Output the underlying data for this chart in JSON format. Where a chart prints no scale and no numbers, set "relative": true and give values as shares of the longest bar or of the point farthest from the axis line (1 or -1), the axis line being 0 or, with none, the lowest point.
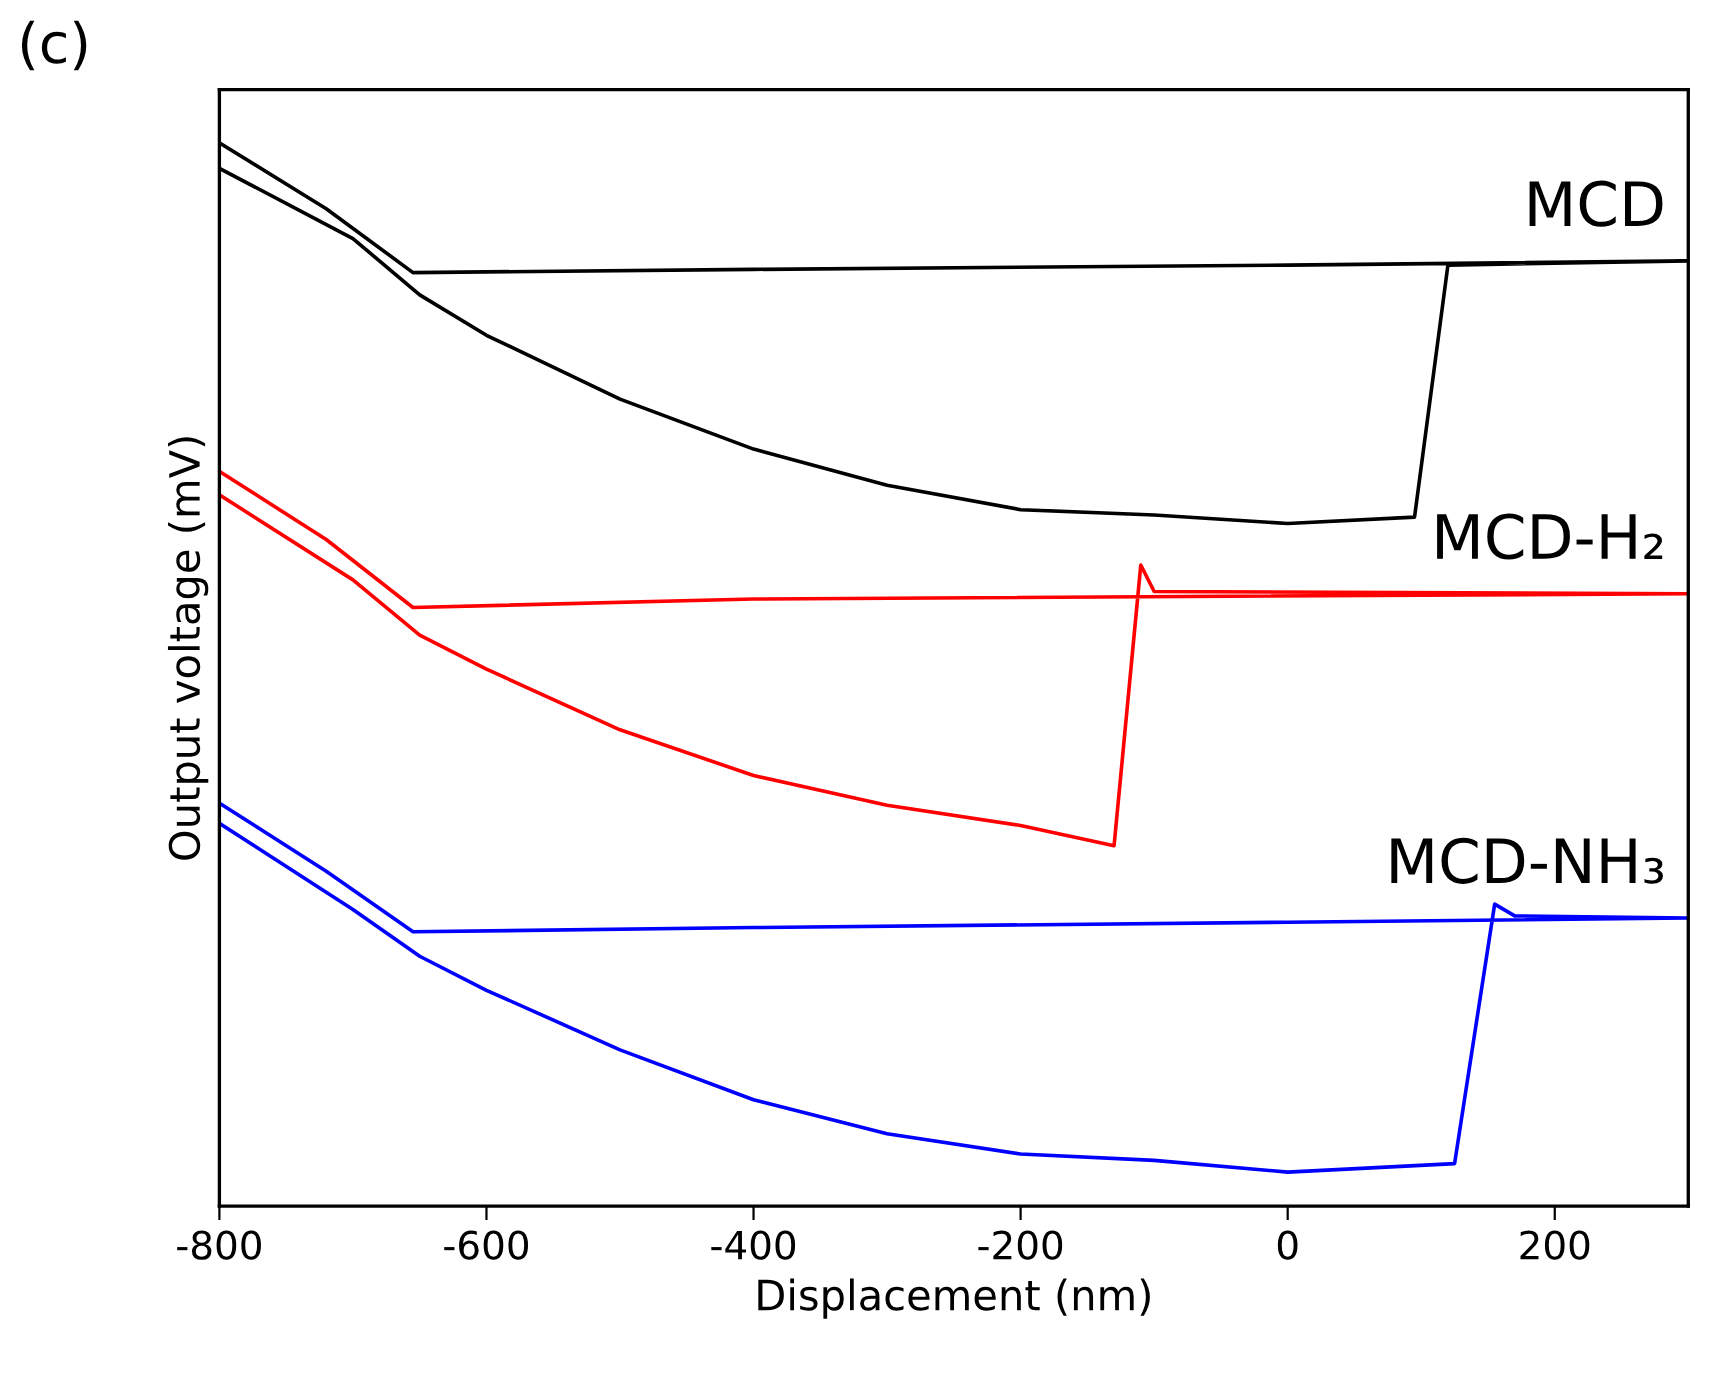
{
  "chart_data": {
    "type": "line",
    "relative": true,
    "xlabel": "Displacement (nm)",
    "ylabel": "Output voltage (mV)",
    "xlim": [
      -800,
      300
    ],
    "xticks": [
      -800,
      -600,
      -400,
      -200,
      0,
      200
    ],
    "annotations": [
      "(c)"
    ],
    "grid": false,
    "legend": false,
    "marker": "none",
    "line_style": "solid",
    "series": [
      {
        "name": "MCD",
        "color": "#000000",
        "x": [
          -800,
          -700,
          -650,
          -600,
          -500,
          -400,
          -300,
          -200,
          -100,
          0,
          95,
          120,
          300,
          0,
          -400,
          -655,
          -720,
          -800
        ],
        "values": [
          0.976,
          0.91,
          0.857,
          0.819,
          0.759,
          0.712,
          0.678,
          0.655,
          0.65,
          0.642,
          0.648,
          0.885,
          0.889,
          0.885,
          0.881,
          0.878,
          0.938,
          1.0
        ]
      },
      {
        "name": "MCD-H₂",
        "color": "#ff0000",
        "x": [
          -800,
          -700,
          -650,
          -600,
          -500,
          -400,
          -300,
          -200,
          -130,
          -110,
          -100,
          300,
          -400,
          -655,
          -720,
          -800
        ],
        "values": [
          0.669,
          0.589,
          0.537,
          0.505,
          0.448,
          0.405,
          0.377,
          0.358,
          0.339,
          0.603,
          0.578,
          0.576,
          0.571,
          0.563,
          0.627,
          0.691
        ]
      },
      {
        "name": "MCD-NH₃",
        "color": "#0000ff",
        "x": [
          -800,
          -700,
          -650,
          -600,
          -500,
          -400,
          -300,
          -200,
          -100,
          0,
          125,
          155,
          170,
          300,
          0,
          -400,
          -655,
          -720,
          -800
        ],
        "values": [
          0.36,
          0.279,
          0.235,
          0.203,
          0.147,
          0.1,
          0.068,
          0.049,
          0.043,
          0.032,
          0.04,
          0.284,
          0.273,
          0.271,
          0.267,
          0.262,
          0.258,
          0.315,
          0.379
        ]
      }
    ]
  }
}
